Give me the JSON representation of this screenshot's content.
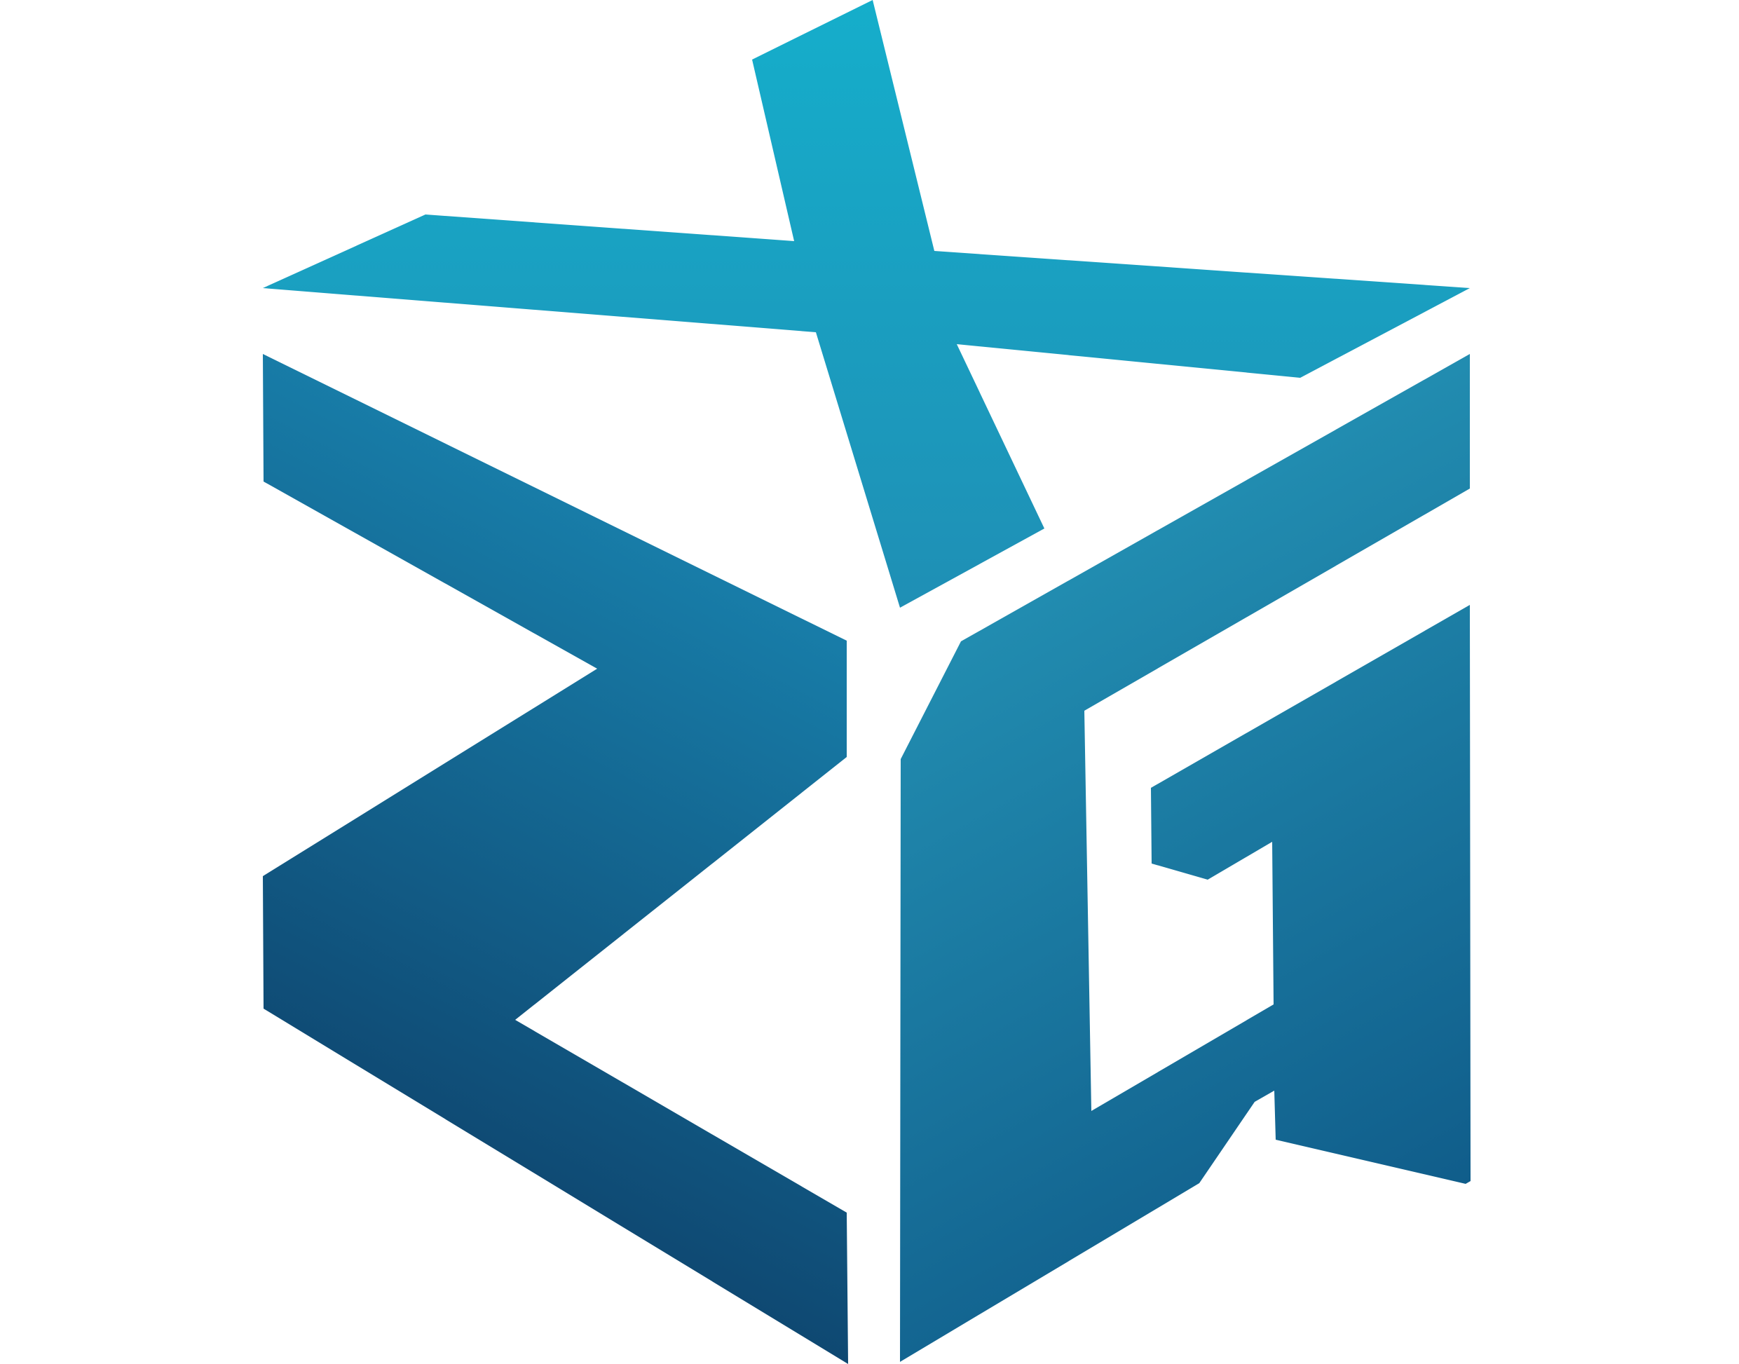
{
  "logo": {
    "name": "geometric-cube-logo",
    "colors": {
      "top": "#15aecb",
      "mid": "#1f8fb5",
      "bottom": "#0c3a63",
      "g_light": "#2596b8",
      "g_dark": "#0f5a88",
      "background": "#ffffff"
    }
  }
}
